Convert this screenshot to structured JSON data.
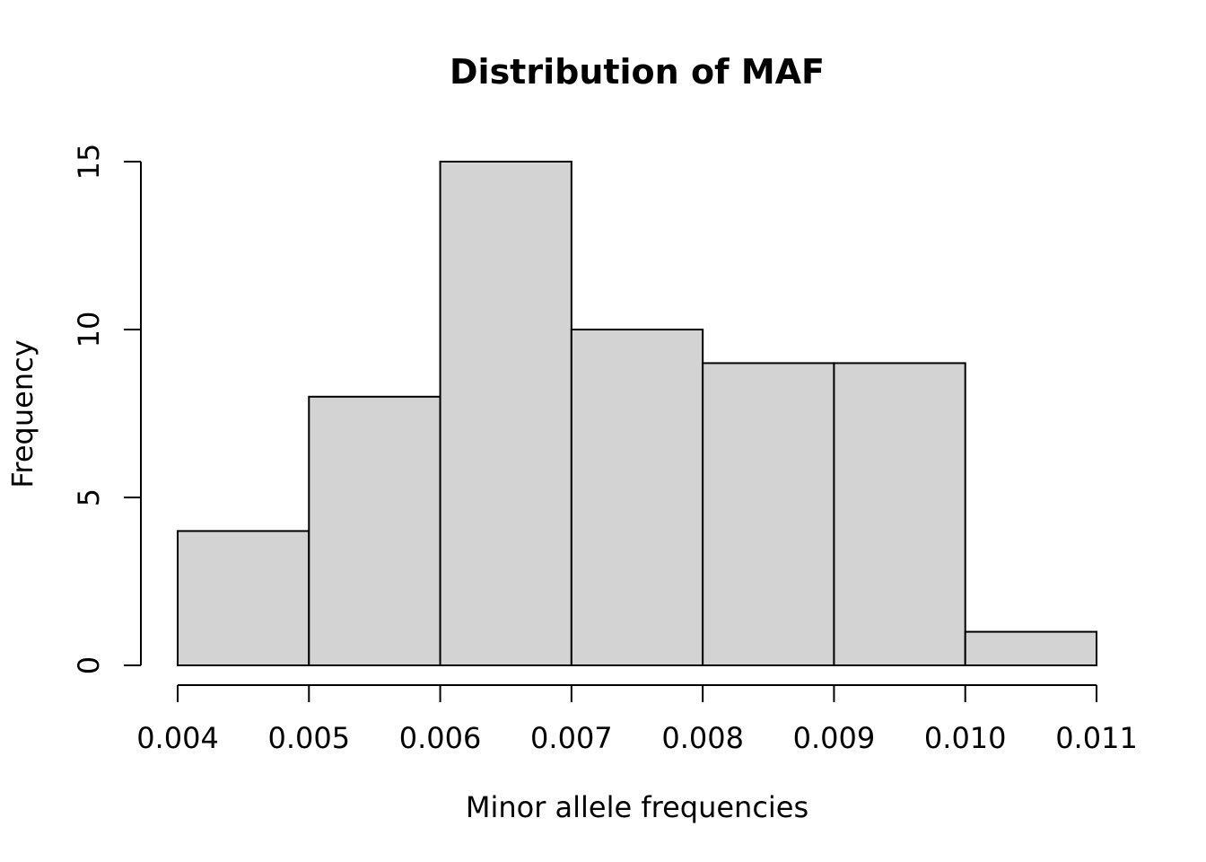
{
  "chart_data": {
    "type": "bar",
    "title": "Distribution of MAF",
    "xlabel": "Minor allele frequencies",
    "ylabel": "Frequency",
    "bins": [
      {
        "from": 0.004,
        "to": 0.005,
        "count": 4
      },
      {
        "from": 0.005,
        "to": 0.006,
        "count": 8
      },
      {
        "from": 0.006,
        "to": 0.007,
        "count": 15
      },
      {
        "from": 0.007,
        "to": 0.008,
        "count": 10
      },
      {
        "from": 0.008,
        "to": 0.009,
        "count": 9
      },
      {
        "from": 0.009,
        "to": 0.01,
        "count": 9
      },
      {
        "from": 0.01,
        "to": 0.011,
        "count": 1
      }
    ],
    "xlim": [
      0.004,
      0.011
    ],
    "ylim": [
      0,
      15
    ],
    "x_ticks": [
      0.004,
      0.005,
      0.006,
      0.007,
      0.008,
      0.009,
      0.01,
      0.011
    ],
    "x_tick_labels": [
      "0.004",
      "0.005",
      "0.006",
      "0.007",
      "0.008",
      "0.009",
      "0.010",
      "0.011"
    ],
    "y_ticks": [
      0,
      5,
      10,
      15
    ],
    "y_tick_labels": [
      "0",
      "5",
      "10",
      "15"
    ],
    "bar_color": "#d3d3d3",
    "grid": false,
    "legend": "none"
  }
}
